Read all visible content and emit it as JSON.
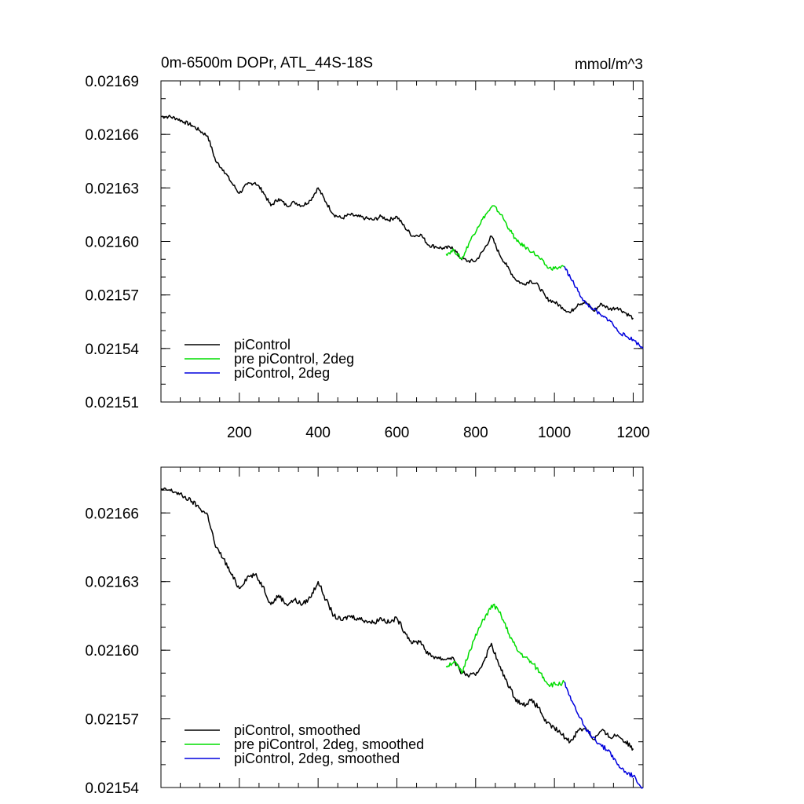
{
  "chart_data": [
    {
      "type": "line",
      "title_left": "0m-6500m DOPr, ATL_44S-18S",
      "title_right": "mmol/m^3",
      "xlim": [
        1,
        1225
      ],
      "ylim": [
        0.02151,
        0.02169
      ],
      "x_ticks": [
        200,
        400,
        600,
        800,
        1000,
        1200
      ],
      "x_tick_labels": [
        "200",
        "400",
        "600",
        "800",
        "1000",
        "1200"
      ],
      "y_ticks": [
        0.02151,
        0.02154,
        0.02157,
        0.0216,
        0.02163,
        0.02166,
        0.02169
      ],
      "y_tick_labels": [
        "0.02151",
        "0.02154",
        "0.02157",
        "0.02160",
        "0.02163",
        "0.02166",
        "0.02169"
      ],
      "legend_placement": "bottom-left",
      "series": [
        {
          "name": "piControl",
          "color": "#000000",
          "x": [
            1,
            20,
            40,
            60,
            80,
            100,
            120,
            140,
            160,
            180,
            200,
            220,
            240,
            260,
            280,
            300,
            320,
            340,
            360,
            380,
            400,
            420,
            440,
            460,
            480,
            500,
            520,
            540,
            560,
            580,
            600,
            620,
            640,
            660,
            680,
            700,
            720,
            740,
            760,
            780,
            800,
            820,
            840,
            860,
            880,
            900,
            920,
            940,
            960,
            980,
            1000,
            1020,
            1040,
            1060,
            1080,
            1100,
            1120,
            1140,
            1160,
            1180,
            1200
          ],
          "y": [
            0.02167,
            0.02167,
            0.021669,
            0.021667,
            0.021665,
            0.021662,
            0.021659,
            0.021645,
            0.02164,
            0.021633,
            0.021627,
            0.021632,
            0.021633,
            0.021628,
            0.02162,
            0.021624,
            0.02162,
            0.021622,
            0.02162,
            0.021623,
            0.02163,
            0.021622,
            0.021615,
            0.021613,
            0.021615,
            0.021614,
            0.021613,
            0.021612,
            0.021614,
            0.021612,
            0.021614,
            0.021608,
            0.021603,
            0.021604,
            0.021598,
            0.021597,
            0.021596,
            0.021597,
            0.021591,
            0.021589,
            0.021589,
            0.021595,
            0.021603,
            0.021593,
            0.021586,
            0.021579,
            0.021576,
            0.021578,
            0.021575,
            0.021568,
            0.021566,
            0.021563,
            0.02156,
            0.021565,
            0.021566,
            0.021561,
            0.021565,
            0.021562,
            0.021563,
            0.02156,
            0.021557
          ]
        },
        {
          "name": "pre piControl, 2deg",
          "color": "#00dd00",
          "x": [
            725,
            745,
            765,
            785,
            805,
            825,
            845,
            865,
            885,
            905,
            925,
            945,
            965,
            985,
            1005,
            1025
          ],
          "y": [
            0.021593,
            0.021595,
            0.02159,
            0.0216,
            0.021608,
            0.021615,
            0.02162,
            0.021615,
            0.021607,
            0.0216,
            0.021597,
            0.021594,
            0.02159,
            0.021585,
            0.021585,
            0.021586
          ]
        },
        {
          "name": "piControl, 2deg",
          "color": "#0000dd",
          "x": [
            1025,
            1040,
            1060,
            1080,
            1100,
            1120,
            1140,
            1160,
            1180,
            1200,
            1225
          ],
          "y": [
            0.021586,
            0.02158,
            0.021572,
            0.021565,
            0.021562,
            0.021558,
            0.021556,
            0.02155,
            0.021547,
            0.021545,
            0.02154
          ]
        }
      ]
    },
    {
      "type": "line",
      "xlim": [
        1,
        1225
      ],
      "ylim": [
        0.02154,
        0.02168
      ],
      "y_ticks": [
        0.02154,
        0.02157,
        0.0216,
        0.02163,
        0.02166
      ],
      "y_tick_labels": [
        "0.02154",
        "0.02157",
        "0.02160",
        "0.02163",
        "0.02166"
      ],
      "x_ticks": [
        200,
        400,
        600,
        800,
        1000,
        1200
      ],
      "legend_placement": "bottom-left",
      "series": [
        {
          "name": "piControl, smoothed",
          "color": "#000000",
          "x": [
            1,
            20,
            40,
            60,
            80,
            100,
            120,
            140,
            160,
            180,
            200,
            220,
            240,
            260,
            280,
            300,
            320,
            340,
            360,
            380,
            400,
            420,
            440,
            460,
            480,
            500,
            520,
            540,
            560,
            580,
            600,
            620,
            640,
            660,
            680,
            700,
            720,
            740,
            760,
            780,
            800,
            820,
            840,
            860,
            880,
            900,
            920,
            940,
            960,
            980,
            1000,
            1020,
            1040,
            1060,
            1080,
            1100,
            1120,
            1140,
            1160,
            1180,
            1200
          ],
          "y": [
            0.02167,
            0.02167,
            0.021669,
            0.021667,
            0.021665,
            0.021662,
            0.021659,
            0.021645,
            0.02164,
            0.021633,
            0.021627,
            0.021632,
            0.021633,
            0.021628,
            0.02162,
            0.021624,
            0.02162,
            0.021622,
            0.02162,
            0.021623,
            0.02163,
            0.021622,
            0.021615,
            0.021613,
            0.021615,
            0.021614,
            0.021613,
            0.021612,
            0.021614,
            0.021612,
            0.021614,
            0.021608,
            0.021603,
            0.021604,
            0.021598,
            0.021597,
            0.021596,
            0.021597,
            0.021591,
            0.021589,
            0.021589,
            0.021595,
            0.021603,
            0.021593,
            0.021586,
            0.021579,
            0.021576,
            0.021578,
            0.021575,
            0.021568,
            0.021566,
            0.021563,
            0.02156,
            0.021565,
            0.021566,
            0.021561,
            0.021565,
            0.021562,
            0.021563,
            0.02156,
            0.021557
          ]
        },
        {
          "name": "pre piControl, 2deg, smoothed",
          "color": "#00dd00",
          "x": [
            725,
            745,
            765,
            785,
            805,
            825,
            845,
            865,
            885,
            905,
            925,
            945,
            965,
            985,
            1005,
            1025
          ],
          "y": [
            0.021593,
            0.021595,
            0.02159,
            0.0216,
            0.021608,
            0.021615,
            0.02162,
            0.021615,
            0.021607,
            0.0216,
            0.021597,
            0.021594,
            0.02159,
            0.021585,
            0.021585,
            0.021586
          ]
        },
        {
          "name": "piControl, 2deg, smoothed",
          "color": "#0000dd",
          "x": [
            1025,
            1040,
            1060,
            1080,
            1100,
            1120,
            1140,
            1160,
            1180,
            1200,
            1225
          ],
          "y": [
            0.021586,
            0.02158,
            0.021572,
            0.021565,
            0.021562,
            0.021558,
            0.021556,
            0.02155,
            0.021547,
            0.021545,
            0.02154
          ]
        }
      ]
    }
  ]
}
